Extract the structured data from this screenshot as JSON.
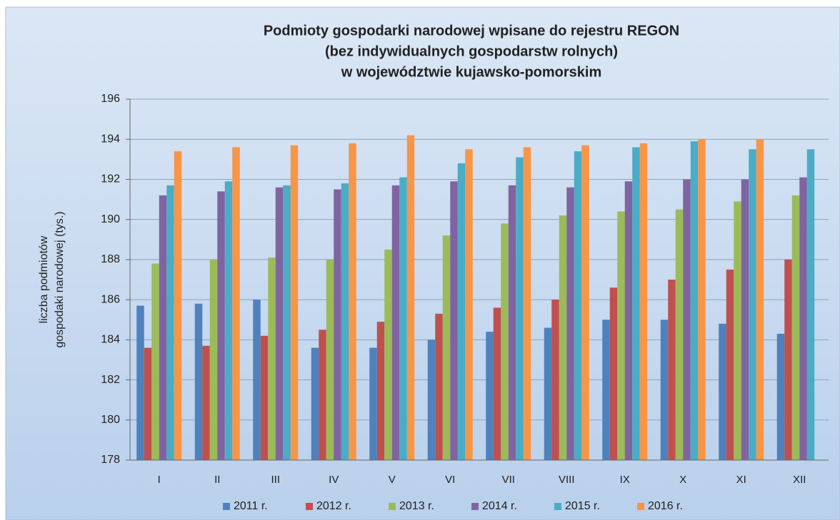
{
  "chart_data": {
    "type": "bar",
    "title": [
      "Podmioty  gospodarki narodowej wpisane do rejestru REGON",
      "(bez indywidualnych  gospodarstw rolnych)",
      "w województwie kujawsko-pomorskim"
    ],
    "y_label": [
      "liczba podmiotów",
      "gospodaki narodowej  (tys.)"
    ],
    "categories": [
      "I",
      "II",
      "III",
      "IV",
      "V",
      "VI",
      "VII",
      "VIII",
      "IX",
      "X",
      "XI",
      "XII"
    ],
    "series": [
      {
        "name": "2011 r.",
        "color": "#4f81bd",
        "values": [
          185.7,
          185.8,
          186.0,
          183.6,
          183.6,
          184.0,
          184.4,
          184.6,
          185.0,
          185.0,
          184.8,
          184.3
        ]
      },
      {
        "name": "2012 r.",
        "color": "#c0504d",
        "values": [
          183.6,
          183.7,
          184.2,
          184.5,
          184.9,
          185.3,
          185.6,
          186.0,
          186.6,
          187.0,
          187.5,
          188.0
        ]
      },
      {
        "name": "2013 r.",
        "color": "#9bbb59",
        "values": [
          187.8,
          188.0,
          188.1,
          188.0,
          188.5,
          189.2,
          189.8,
          190.2,
          190.4,
          190.5,
          190.9,
          191.2
        ]
      },
      {
        "name": "2014 r.",
        "color": "#8064a2",
        "values": [
          191.2,
          191.4,
          191.6,
          191.5,
          191.7,
          191.9,
          191.7,
          191.6,
          191.9,
          192.0,
          192.0,
          192.1
        ]
      },
      {
        "name": "2015 r.",
        "color": "#4bacc6",
        "values": [
          191.7,
          191.9,
          191.7,
          191.8,
          192.1,
          192.8,
          193.1,
          193.4,
          193.6,
          193.9,
          193.5,
          193.5
        ]
      },
      {
        "name": "2016 r.",
        "color": "#f79646",
        "values": [
          193.4,
          193.6,
          193.7,
          193.8,
          194.2,
          193.5,
          193.6,
          193.7,
          193.8,
          194.0,
          194.0,
          null
        ]
      }
    ],
    "ylim": [
      178,
      196
    ],
    "yticks": [
      178,
      180,
      182,
      184,
      186,
      188,
      190,
      192,
      194,
      196
    ],
    "grid": true,
    "legend": "bottom"
  }
}
